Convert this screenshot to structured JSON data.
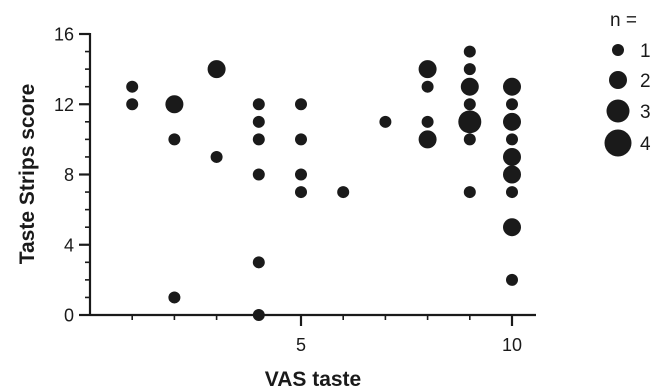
{
  "chart_data": {
    "type": "scatter",
    "title": "",
    "xlabel": "VAS taste",
    "ylabel": "Taste Strips score",
    "xlim": [
      0,
      10.5
    ],
    "ylim": [
      0,
      16
    ],
    "x_ticks": [
      5,
      10
    ],
    "x_minor_ticks": [
      1,
      2,
      3,
      4,
      6,
      7,
      8,
      9
    ],
    "y_ticks": [
      0,
      4,
      8,
      12,
      16
    ],
    "y_minor_ticks": [
      1,
      2,
      3,
      5,
      6,
      7,
      9,
      10,
      11,
      13,
      14,
      15
    ],
    "grid": false,
    "marker_color": "#1a1a1a",
    "points": [
      {
        "x": 1,
        "y": 13,
        "n": 1
      },
      {
        "x": 1,
        "y": 12,
        "n": 1
      },
      {
        "x": 2,
        "y": 12,
        "n": 2
      },
      {
        "x": 2,
        "y": 10,
        "n": 1
      },
      {
        "x": 2,
        "y": 1,
        "n": 1
      },
      {
        "x": 3,
        "y": 14,
        "n": 2
      },
      {
        "x": 3,
        "y": 9,
        "n": 1
      },
      {
        "x": 4,
        "y": 12,
        "n": 1
      },
      {
        "x": 4,
        "y": 11,
        "n": 1
      },
      {
        "x": 4,
        "y": 10,
        "n": 1
      },
      {
        "x": 4,
        "y": 8,
        "n": 1
      },
      {
        "x": 4,
        "y": 3,
        "n": 1
      },
      {
        "x": 4,
        "y": 0,
        "n": 1
      },
      {
        "x": 5,
        "y": 12,
        "n": 1
      },
      {
        "x": 5,
        "y": 10,
        "n": 1
      },
      {
        "x": 5,
        "y": 8,
        "n": 1
      },
      {
        "x": 5,
        "y": 7,
        "n": 1
      },
      {
        "x": 6,
        "y": 7,
        "n": 1
      },
      {
        "x": 7,
        "y": 11,
        "n": 1
      },
      {
        "x": 8,
        "y": 14,
        "n": 2
      },
      {
        "x": 8,
        "y": 13,
        "n": 1
      },
      {
        "x": 8,
        "y": 11,
        "n": 1
      },
      {
        "x": 8,
        "y": 10,
        "n": 2
      },
      {
        "x": 9,
        "y": 15,
        "n": 1
      },
      {
        "x": 9,
        "y": 14,
        "n": 1
      },
      {
        "x": 9,
        "y": 13,
        "n": 2
      },
      {
        "x": 9,
        "y": 12,
        "n": 1
      },
      {
        "x": 9,
        "y": 11,
        "n": 3
      },
      {
        "x": 9,
        "y": 10,
        "n": 1
      },
      {
        "x": 9,
        "y": 7,
        "n": 1
      },
      {
        "x": 10,
        "y": 13,
        "n": 2
      },
      {
        "x": 10,
        "y": 12,
        "n": 1
      },
      {
        "x": 10,
        "y": 11,
        "n": 2
      },
      {
        "x": 10,
        "y": 10,
        "n": 1
      },
      {
        "x": 10,
        "y": 9,
        "n": 2
      },
      {
        "x": 10,
        "y": 8,
        "n": 2
      },
      {
        "x": 10,
        "y": 7,
        "n": 1
      },
      {
        "x": 10,
        "y": 5,
        "n": 2
      },
      {
        "x": 10,
        "y": 2,
        "n": 1
      }
    ],
    "legend": {
      "title": "n =",
      "position": "right",
      "entries": [
        {
          "label": "1",
          "n": 1
        },
        {
          "label": "2",
          "n": 2
        },
        {
          "label": "3",
          "n": 3
        },
        {
          "label": "4",
          "n": 4
        }
      ]
    }
  }
}
